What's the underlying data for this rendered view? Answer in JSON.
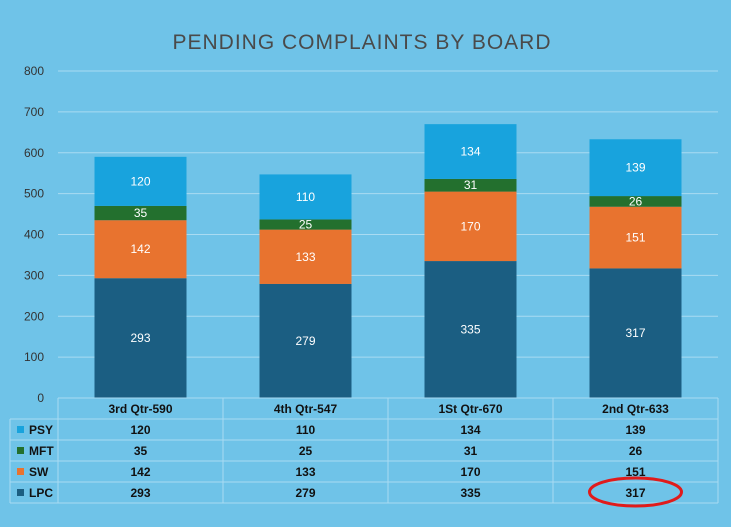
{
  "chart_data": {
    "type": "bar",
    "stacked": true,
    "title": "PENDING COMPLAINTS BY BOARD",
    "categories": [
      "3rd Qtr-590",
      "4th Qtr-547",
      "1St Qtr-670",
      "2nd Qtr-633"
    ],
    "ylim": [
      0,
      800
    ],
    "yticks": [
      0,
      100,
      200,
      300,
      400,
      500,
      600,
      700,
      800
    ],
    "grid": true,
    "series": [
      {
        "name": "LPC",
        "values": [
          293,
          279,
          335,
          317
        ],
        "color": "#1b5e82"
      },
      {
        "name": "SW",
        "values": [
          142,
          133,
          170,
          151
        ],
        "color": "#e8732f"
      },
      {
        "name": "MFT",
        "values": [
          35,
          25,
          31,
          26
        ],
        "color": "#23702e"
      },
      {
        "name": "PSY",
        "values": [
          120,
          110,
          134,
          139
        ],
        "color": "#18a3dd"
      }
    ],
    "data_table": {
      "row_order": [
        "PSY",
        "MFT",
        "SW",
        "LPC"
      ]
    },
    "annotation": {
      "shape": "ellipse",
      "color": "#e01b1b",
      "series": "LPC",
      "category": "2nd Qtr-633",
      "value": 317
    }
  }
}
